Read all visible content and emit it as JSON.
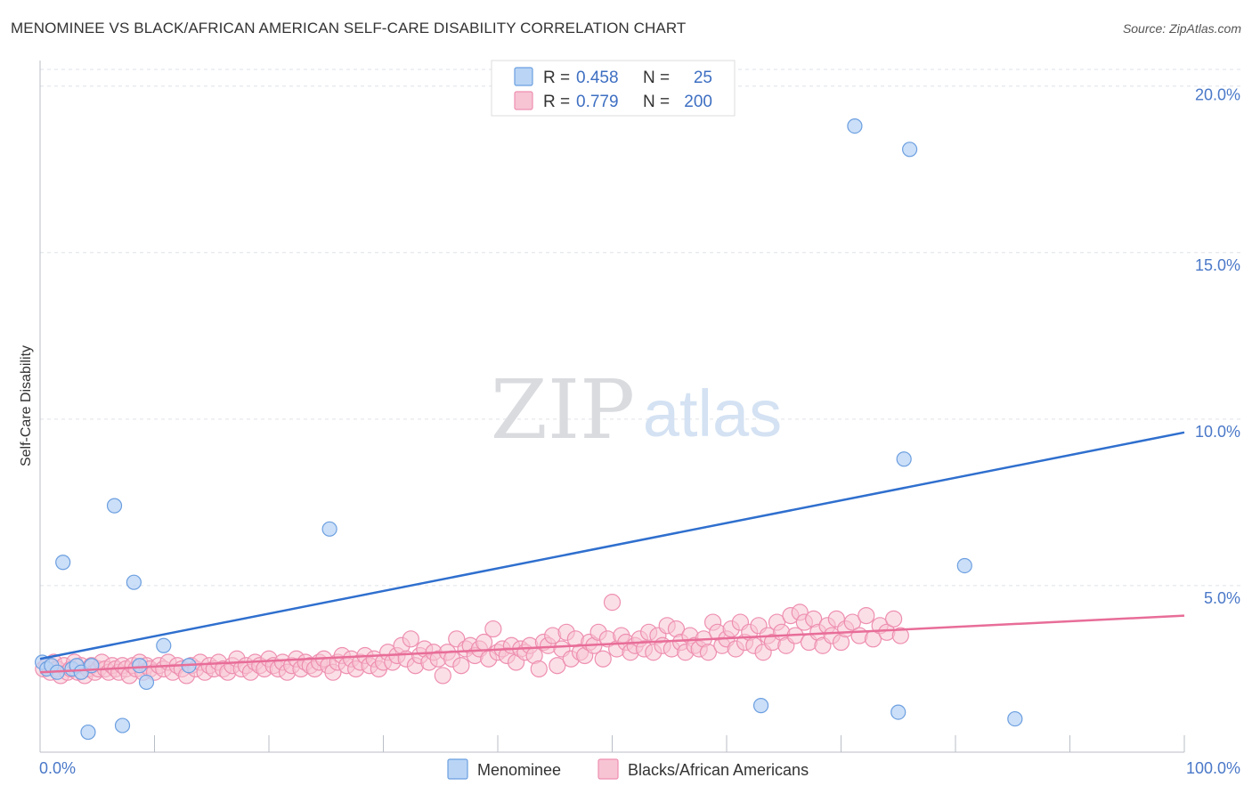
{
  "header": {
    "title": "MENOMINEE VS BLACK/AFRICAN AMERICAN SELF-CARE DISABILITY CORRELATION CHART",
    "source": "Source: ZipAtlas.com"
  },
  "watermark": {
    "zip": "ZIP",
    "atlas": "atlas"
  },
  "colors": {
    "menominee_fill": "#b9d4f5",
    "menominee_stroke": "#6c9fe0",
    "menominee_line": "#2f6fce",
    "black_fill": "#f7c4d4",
    "black_stroke": "#ee8fb0",
    "black_line": "#e86d98",
    "tick_label": "#4a78c8",
    "grid": "#dde2e8"
  },
  "legend": {
    "rows": [
      {
        "r_label": "R =",
        "r_value": "0.458",
        "n_label": "N =",
        "n_value": "25"
      },
      {
        "r_label": "R =",
        "r_value": "0.779",
        "n_label": "N =",
        "n_value": "200"
      }
    ]
  },
  "chart_data": {
    "type": "scatter",
    "title": "MENOMINEE VS BLACK/AFRICAN AMERICAN SELF-CARE DISABILITY CORRELATION CHART",
    "xlabel": "",
    "ylabel": "Self-Care Disability",
    "xlim": [
      0,
      100
    ],
    "ylim": [
      0,
      20.5
    ],
    "x_tick_labels": [
      "0.0%",
      "100.0%"
    ],
    "y_ticks": [
      5,
      10,
      15,
      20
    ],
    "y_tick_labels": [
      "5.0%",
      "10.0%",
      "15.0%",
      "20.0%"
    ],
    "grid": true,
    "legend_position": "top-center",
    "series": [
      {
        "name": "Menominee",
        "R": 0.458,
        "N": 25,
        "trend": {
          "x": [
            0,
            100
          ],
          "y": [
            2.8,
            9.6
          ]
        },
        "points": [
          [
            0.2,
            2.7
          ],
          [
            0.6,
            2.5
          ],
          [
            1.0,
            2.6
          ],
          [
            1.5,
            2.4
          ],
          [
            2.0,
            5.7
          ],
          [
            2.8,
            2.5
          ],
          [
            3.2,
            2.6
          ],
          [
            3.6,
            2.4
          ],
          [
            4.2,
            0.6
          ],
          [
            4.5,
            2.6
          ],
          [
            6.5,
            7.4
          ],
          [
            7.2,
            0.8
          ],
          [
            8.2,
            5.1
          ],
          [
            8.7,
            2.6
          ],
          [
            9.3,
            2.1
          ],
          [
            10.8,
            3.2
          ],
          [
            13.0,
            2.6
          ],
          [
            25.3,
            6.7
          ],
          [
            63.0,
            1.4
          ],
          [
            71.2,
            18.8
          ],
          [
            76.0,
            18.1
          ],
          [
            75.0,
            1.2
          ],
          [
            75.5,
            8.8
          ],
          [
            80.8,
            5.6
          ],
          [
            85.2,
            1.0
          ]
        ]
      },
      {
        "name": "Blacks/African Americans",
        "R": 0.779,
        "N": 200,
        "trend": {
          "x": [
            0,
            100
          ],
          "y": [
            2.4,
            4.1
          ]
        },
        "points": [
          [
            0.3,
            2.5
          ],
          [
            0.6,
            2.6
          ],
          [
            0.9,
            2.4
          ],
          [
            1.2,
            2.7
          ],
          [
            1.5,
            2.5
          ],
          [
            1.8,
            2.3
          ],
          [
            2.1,
            2.6
          ],
          [
            2.4,
            2.4
          ],
          [
            2.7,
            2.5
          ],
          [
            3.0,
            2.7
          ],
          [
            3.3,
            2.4
          ],
          [
            3.6,
            2.6
          ],
          [
            3.9,
            2.3
          ],
          [
            4.2,
            2.5
          ],
          [
            4.5,
            2.6
          ],
          [
            4.8,
            2.4
          ],
          [
            5.1,
            2.5
          ],
          [
            5.4,
            2.7
          ],
          [
            5.7,
            2.5
          ],
          [
            6.0,
            2.4
          ],
          [
            6.3,
            2.6
          ],
          [
            6.6,
            2.5
          ],
          [
            6.9,
            2.4
          ],
          [
            7.2,
            2.6
          ],
          [
            7.5,
            2.5
          ],
          [
            7.8,
            2.3
          ],
          [
            8.1,
            2.6
          ],
          [
            8.4,
            2.5
          ],
          [
            8.7,
            2.7
          ],
          [
            9.0,
            2.4
          ],
          [
            9.3,
            2.6
          ],
          [
            9.6,
            2.5
          ],
          [
            10.0,
            2.4
          ],
          [
            10.4,
            2.6
          ],
          [
            10.8,
            2.5
          ],
          [
            11.2,
            2.7
          ],
          [
            11.6,
            2.4
          ],
          [
            12.0,
            2.6
          ],
          [
            12.4,
            2.5
          ],
          [
            12.8,
            2.3
          ],
          [
            13.2,
            2.6
          ],
          [
            13.6,
            2.5
          ],
          [
            14.0,
            2.7
          ],
          [
            14.4,
            2.4
          ],
          [
            14.8,
            2.6
          ],
          [
            15.2,
            2.5
          ],
          [
            15.6,
            2.7
          ],
          [
            16.0,
            2.5
          ],
          [
            16.4,
            2.4
          ],
          [
            16.8,
            2.6
          ],
          [
            17.2,
            2.8
          ],
          [
            17.6,
            2.5
          ],
          [
            18.0,
            2.6
          ],
          [
            18.4,
            2.4
          ],
          [
            18.8,
            2.7
          ],
          [
            19.2,
            2.6
          ],
          [
            19.6,
            2.5
          ],
          [
            20.0,
            2.8
          ],
          [
            20.4,
            2.6
          ],
          [
            20.8,
            2.5
          ],
          [
            21.2,
            2.7
          ],
          [
            21.6,
            2.4
          ],
          [
            22.0,
            2.6
          ],
          [
            22.4,
            2.8
          ],
          [
            22.8,
            2.5
          ],
          [
            23.2,
            2.7
          ],
          [
            23.6,
            2.6
          ],
          [
            24.0,
            2.5
          ],
          [
            24.4,
            2.7
          ],
          [
            24.8,
            2.8
          ],
          [
            25.2,
            2.6
          ],
          [
            25.6,
            2.4
          ],
          [
            26.0,
            2.7
          ],
          [
            26.4,
            2.9
          ],
          [
            26.8,
            2.6
          ],
          [
            27.2,
            2.8
          ],
          [
            27.6,
            2.5
          ],
          [
            28.0,
            2.7
          ],
          [
            28.4,
            2.9
          ],
          [
            28.8,
            2.6
          ],
          [
            29.2,
            2.8
          ],
          [
            29.6,
            2.5
          ],
          [
            30.0,
            2.7
          ],
          [
            30.4,
            3.0
          ],
          [
            30.8,
            2.7
          ],
          [
            31.2,
            2.9
          ],
          [
            31.6,
            3.2
          ],
          [
            32.0,
            2.8
          ],
          [
            32.4,
            3.4
          ],
          [
            32.8,
            2.6
          ],
          [
            33.2,
            2.9
          ],
          [
            33.6,
            3.1
          ],
          [
            34.0,
            2.7
          ],
          [
            34.4,
            3.0
          ],
          [
            34.8,
            2.8
          ],
          [
            35.2,
            2.3
          ],
          [
            35.6,
            3.0
          ],
          [
            36.0,
            2.8
          ],
          [
            36.4,
            3.4
          ],
          [
            36.8,
            2.6
          ],
          [
            37.2,
            3.1
          ],
          [
            37.6,
            3.2
          ],
          [
            38.0,
            2.9
          ],
          [
            38.4,
            3.1
          ],
          [
            38.8,
            3.3
          ],
          [
            39.2,
            2.8
          ],
          [
            39.6,
            3.7
          ],
          [
            40.0,
            3.0
          ],
          [
            40.4,
            3.1
          ],
          [
            40.8,
            2.9
          ],
          [
            41.2,
            3.2
          ],
          [
            41.6,
            2.7
          ],
          [
            42.0,
            3.1
          ],
          [
            42.4,
            3.0
          ],
          [
            42.8,
            3.2
          ],
          [
            43.2,
            2.9
          ],
          [
            43.6,
            2.5
          ],
          [
            44.0,
            3.3
          ],
          [
            44.4,
            3.2
          ],
          [
            44.8,
            3.5
          ],
          [
            45.2,
            2.6
          ],
          [
            45.6,
            3.1
          ],
          [
            46.0,
            3.6
          ],
          [
            46.4,
            2.8
          ],
          [
            46.8,
            3.4
          ],
          [
            47.2,
            3.0
          ],
          [
            47.6,
            2.9
          ],
          [
            48.0,
            3.3
          ],
          [
            48.4,
            3.2
          ],
          [
            48.8,
            3.6
          ],
          [
            49.2,
            2.8
          ],
          [
            49.6,
            3.4
          ],
          [
            50.0,
            4.5
          ],
          [
            50.4,
            3.1
          ],
          [
            50.8,
            3.5
          ],
          [
            51.2,
            3.3
          ],
          [
            51.6,
            3.0
          ],
          [
            52.0,
            3.2
          ],
          [
            52.4,
            3.4
          ],
          [
            52.8,
            3.1
          ],
          [
            53.2,
            3.6
          ],
          [
            53.6,
            3.0
          ],
          [
            54.0,
            3.5
          ],
          [
            54.4,
            3.2
          ],
          [
            54.8,
            3.8
          ],
          [
            55.2,
            3.1
          ],
          [
            55.6,
            3.7
          ],
          [
            56.0,
            3.3
          ],
          [
            56.4,
            3.0
          ],
          [
            56.8,
            3.5
          ],
          [
            57.2,
            3.2
          ],
          [
            57.6,
            3.1
          ],
          [
            58.0,
            3.4
          ],
          [
            58.4,
            3.0
          ],
          [
            58.8,
            3.9
          ],
          [
            59.2,
            3.6
          ],
          [
            59.6,
            3.2
          ],
          [
            60.0,
            3.4
          ],
          [
            60.4,
            3.7
          ],
          [
            60.8,
            3.1
          ],
          [
            61.2,
            3.9
          ],
          [
            61.6,
            3.3
          ],
          [
            62.0,
            3.6
          ],
          [
            62.4,
            3.2
          ],
          [
            62.8,
            3.8
          ],
          [
            63.2,
            3.0
          ],
          [
            63.6,
            3.5
          ],
          [
            64.0,
            3.3
          ],
          [
            64.4,
            3.9
          ],
          [
            64.8,
            3.6
          ],
          [
            65.2,
            3.2
          ],
          [
            65.6,
            4.1
          ],
          [
            66.0,
            3.5
          ],
          [
            66.4,
            4.2
          ],
          [
            66.8,
            3.9
          ],
          [
            67.2,
            3.3
          ],
          [
            67.6,
            4.0
          ],
          [
            68.0,
            3.6
          ],
          [
            68.4,
            3.2
          ],
          [
            68.8,
            3.8
          ],
          [
            69.2,
            3.5
          ],
          [
            69.6,
            4.0
          ],
          [
            70.0,
            3.3
          ],
          [
            70.4,
            3.7
          ],
          [
            71.0,
            3.9
          ],
          [
            71.6,
            3.5
          ],
          [
            72.2,
            4.1
          ],
          [
            72.8,
            3.4
          ],
          [
            73.4,
            3.8
          ],
          [
            74.0,
            3.6
          ],
          [
            74.6,
            4.0
          ],
          [
            75.2,
            3.5
          ]
        ]
      }
    ]
  },
  "bottom_legend": [
    {
      "label": "Menominee"
    },
    {
      "label": "Blacks/African Americans"
    }
  ]
}
